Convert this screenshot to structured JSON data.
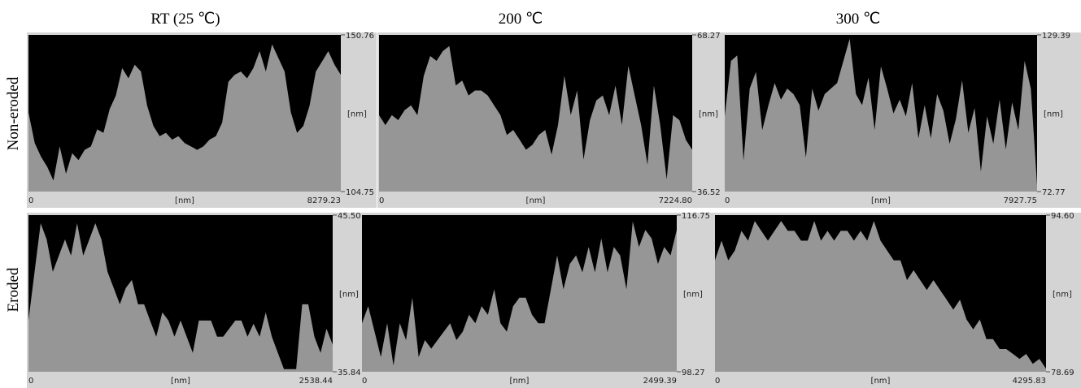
{
  "column_titles": [
    "RT (25 ℃)",
    "200 ℃",
    "300 ℃"
  ],
  "row_labels": [
    "Non-eroded",
    "Eroded"
  ],
  "colors": {
    "plot_background": "#000000",
    "profile_fill": "#969696",
    "panel_background": "#d4d4d4"
  },
  "chart_data": [
    {
      "type": "area",
      "row": "Non-eroded",
      "column": "RT (25 ℃)",
      "xlabel": "[nm]",
      "ylabel": "[nm]",
      "x_tick_labels": [
        "0",
        "8279.23"
      ],
      "y_tick_labels": [
        "150.76",
        "104.75"
      ],
      "xlim": [
        0,
        8279.23
      ],
      "ylim": [
        104.75,
        150.76
      ],
      "x": [
        0,
        166,
        331,
        497,
        662,
        828,
        993,
        1159,
        1325,
        1490,
        1656,
        1821,
        1987,
        2153,
        2318,
        2484,
        2649,
        2815,
        2981,
        3146,
        3312,
        3477,
        3643,
        3808,
        3974,
        4140,
        4305,
        4471,
        4636,
        4802,
        4968,
        5133,
        5299,
        5464,
        5630,
        5796,
        5961,
        6127,
        6292,
        6458,
        6624,
        6789,
        6955,
        7120,
        7286,
        7451,
        7617,
        7783,
        7948,
        8114,
        8279.23
      ],
      "y": [
        128,
        119,
        115,
        112,
        108,
        118,
        110,
        116,
        114,
        117,
        118,
        123,
        122,
        129,
        133,
        141,
        138,
        142,
        140,
        130,
        124,
        121,
        122,
        120,
        121,
        119,
        118,
        117,
        118,
        120,
        121,
        125,
        137,
        139,
        140,
        138,
        141,
        146,
        140,
        148,
        144,
        140,
        128,
        122,
        124,
        130,
        140,
        143,
        146,
        142,
        139
      ]
    },
    {
      "type": "area",
      "row": "Non-eroded",
      "column": "200 ℃",
      "xlabel": "[nm]",
      "ylabel": "[nm]",
      "x_tick_labels": [
        "0",
        "7224.80"
      ],
      "y_tick_labels": [
        "68.27",
        "36.52"
      ],
      "xlim": [
        0,
        7224.8
      ],
      "ylim": [
        36.52,
        68.27
      ],
      "x": [
        0,
        147,
        295,
        442,
        590,
        737,
        885,
        1032,
        1180,
        1327,
        1474,
        1622,
        1769,
        1917,
        2064,
        2212,
        2359,
        2507,
        2654,
        2802,
        2949,
        3096,
        3244,
        3391,
        3539,
        3686,
        3834,
        3981,
        4129,
        4276,
        4424,
        4571,
        4718,
        4866,
        5013,
        5161,
        5308,
        5456,
        5603,
        5751,
        5898,
        6046,
        6193,
        6340,
        6488,
        6635,
        6783,
        6930,
        7078,
        7224.8
      ],
      "y": [
        52,
        50,
        52,
        51,
        53,
        54,
        52,
        60,
        64,
        63,
        65,
        66,
        58,
        59,
        56,
        57,
        57,
        56,
        54,
        52,
        48,
        49,
        47,
        45,
        46,
        48,
        49,
        44,
        50,
        60,
        52,
        57,
        43,
        51,
        55,
        56,
        52,
        58,
        50,
        62,
        56,
        50,
        42,
        58,
        50,
        39,
        52,
        51,
        47,
        45
      ]
    },
    {
      "type": "area",
      "row": "Non-eroded",
      "column": "300 ℃",
      "xlabel": "[nm]",
      "ylabel": "[nm]",
      "x_tick_labels": [
        "0",
        "7927.75"
      ],
      "y_tick_labels": [
        "129.39",
        "72.77"
      ],
      "xlim": [
        0,
        7927.75
      ],
      "ylim": [
        72.77,
        129.39
      ],
      "x": [
        0,
        159,
        317,
        476,
        634,
        793,
        951,
        1110,
        1268,
        1427,
        1586,
        1744,
        1903,
        2061,
        2220,
        2378,
        2537,
        2695,
        2854,
        3013,
        3171,
        3330,
        3488,
        3647,
        3805,
        3964,
        4123,
        4281,
        4440,
        4598,
        4757,
        4915,
        5074,
        5232,
        5391,
        5550,
        5708,
        5867,
        6025,
        6184,
        6342,
        6501,
        6659,
        6818,
        6977,
        7135,
        7294,
        7452,
        7611,
        7769,
        7927.75
      ],
      "y": [
        100,
        120,
        122,
        84,
        110,
        116,
        95,
        104,
        112,
        106,
        110,
        108,
        104,
        85,
        110,
        102,
        108,
        110,
        112,
        120,
        128,
        108,
        104,
        114,
        95,
        118,
        110,
        101,
        106,
        100,
        112,
        92,
        104,
        92,
        108,
        102,
        90,
        99,
        113,
        94,
        103,
        80,
        100,
        90,
        106,
        88,
        105,
        95,
        120,
        110,
        75
      ]
    },
    {
      "type": "area",
      "row": "Eroded",
      "column": "RT (25 ℃)",
      "xlabel": "[nm]",
      "ylabel": "[nm]",
      "x_tick_labels": [
        "0",
        "2538.44"
      ],
      "y_tick_labels": [
        "45.50",
        "35.84"
      ],
      "xlim": [
        0,
        2538.44
      ],
      "ylim": [
        35.84,
        45.5
      ],
      "x": [
        0,
        51,
        102,
        152,
        203,
        254,
        305,
        355,
        406,
        457,
        508,
        558,
        609,
        660,
        711,
        762,
        812,
        863,
        914,
        965,
        1015,
        1066,
        1117,
        1168,
        1218,
        1269,
        1320,
        1371,
        1422,
        1472,
        1523,
        1574,
        1625,
        1675,
        1726,
        1777,
        1828,
        1878,
        1929,
        1980,
        2031,
        2081,
        2132,
        2183,
        2234,
        2284,
        2335,
        2386,
        2437,
        2487,
        2538.44
      ],
      "y": [
        39,
        42,
        45,
        44,
        42,
        43,
        44,
        43,
        45,
        43,
        44,
        45,
        44,
        42,
        41,
        40,
        41,
        41.5,
        40,
        40,
        39,
        38,
        39.5,
        39,
        38,
        39,
        38,
        37,
        39,
        39,
        39,
        38,
        38,
        38.5,
        39,
        39,
        38,
        38.8,
        38,
        39.5,
        38,
        37,
        36,
        36,
        36,
        40,
        40,
        38,
        37,
        38.5,
        37.5
      ]
    },
    {
      "type": "area",
      "row": "Eroded",
      "column": "200 ℃",
      "xlabel": "[nm]",
      "ylabel": "[nm]",
      "x_tick_labels": [
        "0",
        "2499.39"
      ],
      "y_tick_labels": [
        "116.75",
        "98.27"
      ],
      "xlim": [
        0,
        2499.39
      ],
      "ylim": [
        98.27,
        116.75
      ],
      "x": [
        0,
        50,
        100,
        150,
        200,
        250,
        300,
        350,
        400,
        450,
        500,
        550,
        600,
        650,
        700,
        750,
        800,
        850,
        900,
        950,
        1000,
        1050,
        1100,
        1150,
        1200,
        1250,
        1300,
        1350,
        1400,
        1450,
        1500,
        1550,
        1600,
        1650,
        1700,
        1750,
        1800,
        1850,
        1900,
        1950,
        2000,
        2050,
        2100,
        2150,
        2200,
        2250,
        2300,
        2350,
        2400,
        2450,
        2499.39
      ],
      "y": [
        104,
        106,
        103,
        100,
        104,
        99,
        104,
        102,
        107,
        100,
        102,
        101,
        102,
        103,
        104,
        102,
        103,
        105,
        104,
        106,
        105,
        108,
        104,
        103,
        106,
        107,
        107,
        105,
        104,
        104,
        108,
        112,
        108,
        111,
        112,
        110,
        113,
        110,
        114,
        110,
        113,
        112,
        108,
        116,
        113,
        115,
        114,
        111,
        113,
        112,
        115
      ]
    },
    {
      "type": "area",
      "row": "Eroded",
      "column": "300 ℃",
      "xlabel": "[nm]",
      "ylabel": "[nm]",
      "x_tick_labels": [
        "0",
        "4295.83"
      ],
      "y_tick_labels": [
        "94.60",
        "78.69"
      ],
      "xlim": [
        0,
        4295.83
      ],
      "ylim": [
        78.69,
        94.6
      ],
      "x": [
        0,
        86,
        172,
        258,
        344,
        430,
        516,
        601,
        687,
        773,
        859,
        945,
        1031,
        1117,
        1203,
        1289,
        1375,
        1460,
        1546,
        1632,
        1718,
        1804,
        1890,
        1976,
        2062,
        2148,
        2234,
        2320,
        2406,
        2492,
        2577,
        2663,
        2749,
        2835,
        2921,
        3007,
        3093,
        3179,
        3265,
        3351,
        3437,
        3522,
        3608,
        3694,
        3780,
        3866,
        3952,
        4038,
        4124,
        4210,
        4295.83
      ],
      "y": [
        90,
        92,
        90,
        91,
        93,
        92,
        94,
        93,
        92,
        93,
        94,
        93,
        93,
        92,
        92,
        94,
        92,
        93,
        92,
        93,
        93,
        92,
        93,
        92,
        94,
        92,
        91,
        90,
        90,
        88,
        89,
        88,
        87,
        88,
        87,
        86,
        85,
        86,
        84,
        83,
        84,
        82,
        82,
        81,
        81,
        80.5,
        80,
        80.5,
        79.5,
        80,
        79
      ]
    }
  ]
}
